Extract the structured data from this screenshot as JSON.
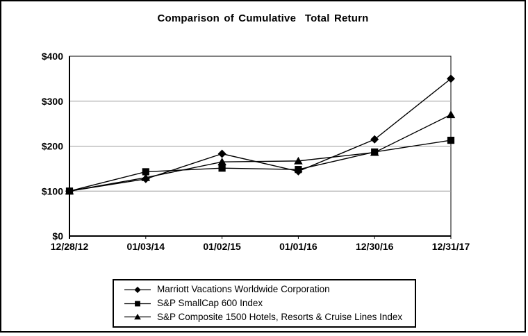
{
  "figure": {
    "background": "#ffffff",
    "border_color": "#000000"
  },
  "chart_data": {
    "type": "line",
    "title": "Comparison of Cumulative  Total Return",
    "categories": [
      "12/28/12",
      "01/03/14",
      "01/02/15",
      "01/01/16",
      "12/30/16",
      "12/31/17"
    ],
    "series": [
      {
        "name": "Marriott Vacations Worldwide Corporation",
        "marker": "diamond",
        "values": [
          100,
          127,
          183,
          144,
          215,
          350
        ]
      },
      {
        "name": "S&P SmallCap 600 Index",
        "marker": "square",
        "values": [
          100,
          143,
          151,
          148,
          187,
          213
        ]
      },
      {
        "name": "S&P Composite 1500 Hotels, Resorts & Cruise Lines Index",
        "marker": "triangle",
        "values": [
          100,
          130,
          165,
          167,
          186,
          270
        ]
      }
    ],
    "ylim": [
      0,
      400
    ],
    "yticks": [
      {
        "value": 0,
        "label": "$0"
      },
      {
        "value": 100,
        "label": "$100"
      },
      {
        "value": 200,
        "label": "$200"
      },
      {
        "value": 300,
        "label": "$300"
      },
      {
        "value": 400,
        "label": "$400"
      }
    ],
    "grid": "horizontal",
    "legend_position": "bottom-center",
    "line_color": "#000000",
    "marker_color": "#000000",
    "grid_color": "#9b9b9b"
  }
}
